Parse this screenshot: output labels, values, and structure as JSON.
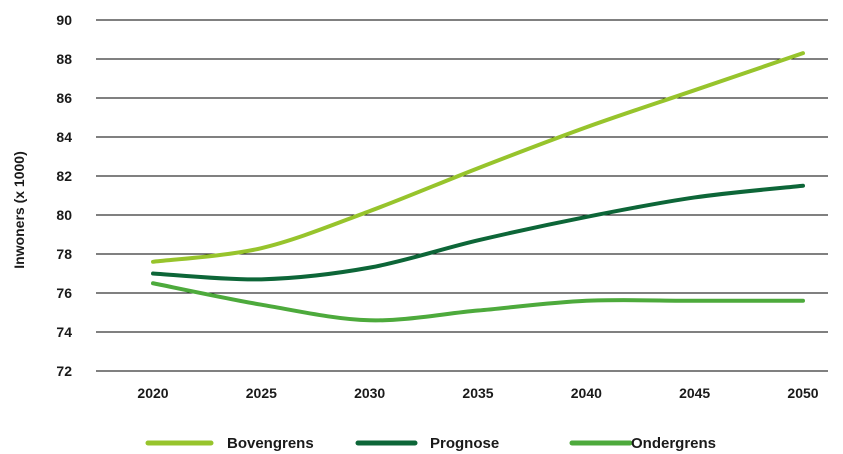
{
  "chart_data": {
    "type": "line",
    "title": "",
    "xlabel": "",
    "ylabel": "Inwoners (x 1000)",
    "x": [
      2020,
      2025,
      2030,
      2035,
      2040,
      2045,
      2050
    ],
    "x_tick_labels": [
      "2020",
      "2025",
      "2030",
      "2035",
      "2040",
      "2045",
      "2050"
    ],
    "y_tick_labels": [
      "72",
      "74",
      "76",
      "78",
      "80",
      "82",
      "84",
      "86",
      "88",
      "90"
    ],
    "ylim": [
      72,
      90
    ],
    "grid": "horizontal",
    "legend_position": "bottom",
    "series": [
      {
        "name": "Bovengrens",
        "color": "#97c42c",
        "values": [
          77.6,
          78.3,
          80.2,
          82.4,
          84.5,
          86.4,
          88.3
        ]
      },
      {
        "name": "Prognose",
        "color": "#0d6638",
        "values": [
          77.0,
          76.7,
          77.3,
          78.7,
          79.9,
          80.9,
          81.5
        ]
      },
      {
        "name": "Ondergrens",
        "color": "#4daa3c",
        "values": [
          76.5,
          75.4,
          74.6,
          75.1,
          75.6,
          75.6,
          75.6
        ]
      }
    ]
  }
}
